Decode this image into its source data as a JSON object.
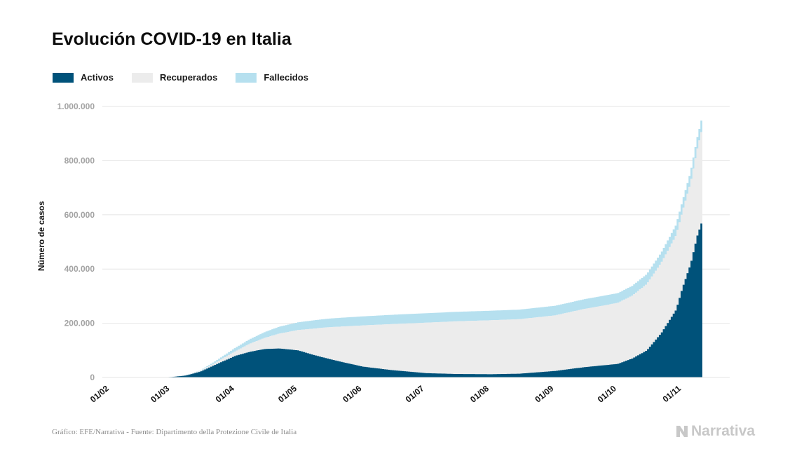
{
  "title": "Evolución COVID-19 en Italia",
  "legend": [
    {
      "label": "Activos",
      "color": "#00527a"
    },
    {
      "label": "Recuperados",
      "color": "#ececec"
    },
    {
      "label": "Fallecidos",
      "color": "#b6e0ef"
    }
  ],
  "footer": {
    "source": "Gráfico: EFE/Narrativa - Fuente: Dipartimento della Protezione Civile de Italia",
    "brand": "Narrativa"
  },
  "chart_data": {
    "type": "area",
    "stacked": true,
    "ylabel": "Número de casos",
    "xlabel": "",
    "ylim": [
      0,
      1000000
    ],
    "yticks": [
      {
        "value": 0,
        "label": "0"
      },
      {
        "value": 200000,
        "label": "200.000"
      },
      {
        "value": 400000,
        "label": "400.000"
      },
      {
        "value": 600000,
        "label": "600.000"
      },
      {
        "value": 800000,
        "label": "800.000"
      },
      {
        "value": 1000000,
        "label": "1.000.000"
      }
    ],
    "xticks": [
      "01/02",
      "01/03",
      "01/04",
      "01/05",
      "01/06",
      "01/07",
      "01/08",
      "01/09",
      "01/10",
      "01/11"
    ],
    "x": [
      "01/02",
      "15/02",
      "24/02",
      "01/03",
      "08/03",
      "15/03",
      "22/03",
      "01/04",
      "08/04",
      "15/04",
      "22/04",
      "01/05",
      "08/05",
      "15/05",
      "22/05",
      "01/06",
      "15/06",
      "01/07",
      "15/07",
      "01/08",
      "15/08",
      "01/09",
      "15/09",
      "01/10",
      "08/10",
      "15/10",
      "22/10",
      "29/10",
      "01/11",
      "05/11",
      "08/11",
      "11/11"
    ],
    "grid": true,
    "series": [
      {
        "name": "Activos",
        "values": [
          0,
          0,
          300,
          1600,
          7000,
          21000,
          46000,
          80000,
          95000,
          105000,
          107000,
          100000,
          84000,
          70000,
          57000,
          40000,
          27000,
          16000,
          13000,
          12000,
          14000,
          24000,
          38000,
          50000,
          70000,
          100000,
          165000,
          250000,
          330000,
          420000,
          520000,
          590000
        ]
      },
      {
        "name": "Recuperados",
        "values": [
          0,
          0,
          0,
          100,
          600,
          2300,
          7000,
          17000,
          30000,
          41000,
          55000,
          75000,
          96000,
          115000,
          131000,
          152000,
          170000,
          186000,
          194000,
          199000,
          201000,
          205000,
          215000,
          225000,
          232000,
          245000,
          260000,
          275000,
          282000,
          300000,
          320000,
          345000
        ]
      },
      {
        "name": "Fallecidos",
        "values": [
          0,
          0,
          10,
          30,
          200,
          1800,
          5500,
          13000,
          17000,
          21500,
          25500,
          28500,
          30500,
          31800,
          32600,
          33400,
          34300,
          34800,
          35000,
          35200,
          35400,
          35500,
          35700,
          36000,
          36300,
          36800,
          37700,
          38800,
          39400,
          40500,
          41800,
          43000
        ]
      }
    ]
  }
}
